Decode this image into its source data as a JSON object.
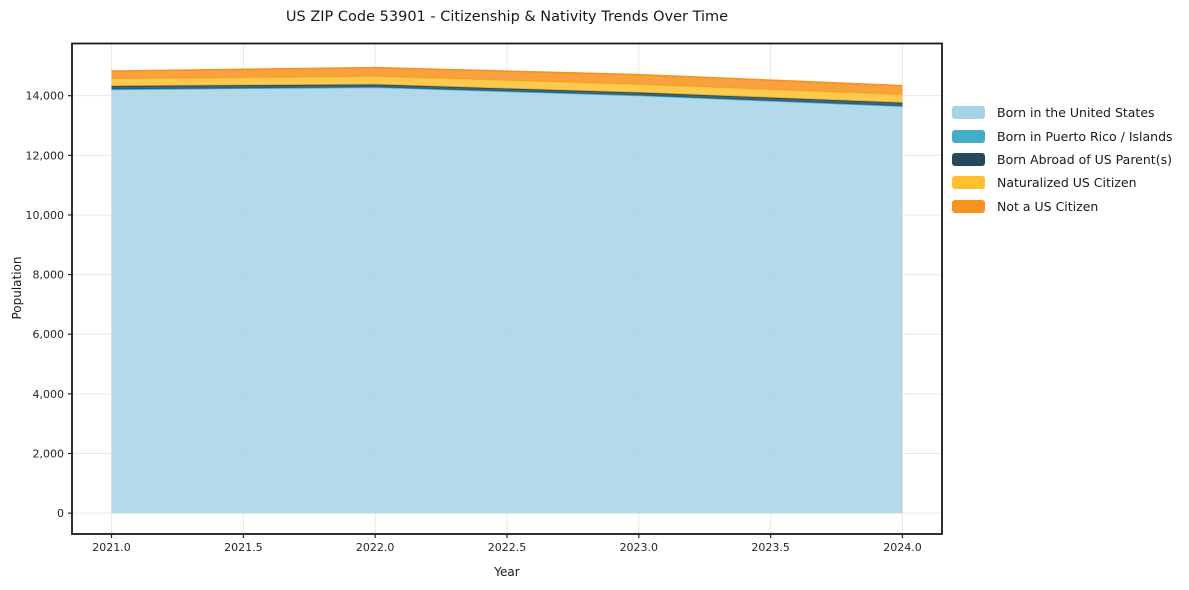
{
  "figure": {
    "background": "#ffffff",
    "frame_color": "#1a1a1a",
    "grid_color": "#e9e9e9",
    "tick_color": "#262626"
  },
  "chart_data": {
    "type": "area",
    "stacked": true,
    "title": "US ZIP Code 53901 - Citizenship & Nativity Trends Over Time",
    "xlabel": "Year",
    "ylabel": "Population",
    "x": [
      2021,
      2022,
      2023,
      2024
    ],
    "series": [
      {
        "name": "Born in the United States",
        "color": "#a6d2e7",
        "values": [
          14200,
          14270,
          14000,
          13630
        ]
      },
      {
        "name": "Born in Puerto Rico / Islands",
        "color": "#45adca",
        "values": [
          15,
          15,
          10,
          20
        ]
      },
      {
        "name": "Born Abroad of US Parent(s)",
        "color": "#24485c",
        "values": [
          110,
          90,
          95,
          115
        ]
      },
      {
        "name": "Naturalized US Citizen",
        "color": "#fdc02f",
        "values": [
          240,
          270,
          270,
          270
        ]
      },
      {
        "name": "Not a US Citizen",
        "color": "#f6921d",
        "values": [
          260,
          295,
          330,
          300
        ]
      }
    ],
    "xlim": [
      2020.85,
      2024.15
    ],
    "ylim": [
      -700,
      15750
    ],
    "xticks": {
      "values": [
        2021.0,
        2021.5,
        2022.0,
        2022.5,
        2023.0,
        2023.5,
        2024.0
      ],
      "labels": [
        "2021.0",
        "2021.5",
        "2022.0",
        "2022.5",
        "2023.0",
        "2023.5",
        "2024.0"
      ]
    },
    "yticks": {
      "values": [
        0,
        2000,
        4000,
        6000,
        8000,
        10000,
        12000,
        14000
      ],
      "labels": [
        "0",
        "2,000",
        "4,000",
        "6,000",
        "8,000",
        "10,000",
        "12,000",
        "14,000"
      ]
    },
    "grid": true,
    "fill_opacity": 0.85,
    "legend_position": "right-outside"
  }
}
